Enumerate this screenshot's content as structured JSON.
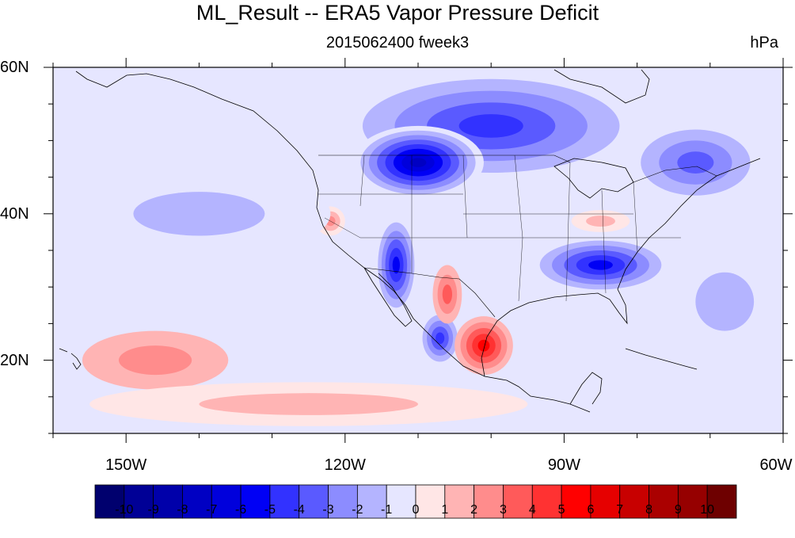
{
  "title": "ML_Result -- ERA5 Vapor Pressure Deficit",
  "subtitle": "2015062400 fweek3",
  "units": "hPa",
  "map": {
    "projection": "cylindrical-equidistant",
    "lon_range": [
      -160,
      -60
    ],
    "lat_range": [
      10,
      60
    ],
    "lon_ticks": [
      {
        "value": -150,
        "label": "150W"
      },
      {
        "value": -120,
        "label": "120W"
      },
      {
        "value": -90,
        "label": "90W"
      },
      {
        "value": -60,
        "label": "60W"
      }
    ],
    "lat_ticks": [
      {
        "value": 60,
        "label": "60N"
      },
      {
        "value": 40,
        "label": "40N"
      },
      {
        "value": 20,
        "label": "20N"
      }
    ]
  },
  "colorbar": {
    "labels": [
      "-10",
      "-9",
      "-8",
      "-7",
      "-6",
      "-5",
      "-4",
      "-3",
      "-2",
      "-1",
      "0",
      "1",
      "2",
      "3",
      "4",
      "5",
      "6",
      "7",
      "8",
      "9",
      "10"
    ],
    "colors": [
      "#00006e",
      "#000096",
      "#0000aa",
      "#0000c3",
      "#0000dc",
      "#0000f5",
      "#3232ff",
      "#5a5aff",
      "#8c8cff",
      "#b4b4ff",
      "#e6e6ff",
      "#ffe6e6",
      "#ffb4b4",
      "#ff8c8c",
      "#ff5a5a",
      "#ff3232",
      "#ff0000",
      "#e60000",
      "#c80000",
      "#aa0000",
      "#960000",
      "#6e0000"
    ]
  },
  "chart_data": {
    "type": "heatmap",
    "variable": "Vapor Pressure Deficit",
    "units": "hPa",
    "x": "longitude",
    "y": "latitude",
    "xlim": [
      -160,
      -60
    ],
    "ylim": [
      10,
      60
    ],
    "color_range": [
      -10,
      10
    ],
    "regions": [
      {
        "lon": -100,
        "lat": 52,
        "r_lon": 22,
        "r_lat": 8,
        "value": -5
      },
      {
        "lon": -110,
        "lat": 47,
        "r_lon": 9,
        "r_lat": 5,
        "value": -7.5
      },
      {
        "lon": -85,
        "lat": 33,
        "r_lon": 10,
        "r_lat": 4,
        "value": -6
      },
      {
        "lon": -113,
        "lat": 33,
        "r_lon": 3,
        "r_lat": 7,
        "value": -6
      },
      {
        "lon": -107,
        "lat": 23,
        "r_lon": 3,
        "r_lat": 4,
        "value": -5
      },
      {
        "lon": -101,
        "lat": 22,
        "r_lon": 4,
        "r_lat": 4,
        "value": 5
      },
      {
        "lon": -106,
        "lat": 29,
        "r_lon": 2,
        "r_lat": 4,
        "value": 3
      },
      {
        "lon": -122,
        "lat": 39,
        "r_lon": 2,
        "r_lat": 2,
        "value": 2.5
      },
      {
        "lon": -85,
        "lat": 39,
        "r_lon": 4,
        "r_lat": 1.5,
        "value": 1.5
      },
      {
        "lon": -146,
        "lat": 20,
        "r_lon": 10,
        "r_lat": 4,
        "value": 2
      },
      {
        "lon": -125,
        "lat": 14,
        "r_lon": 30,
        "r_lat": 3,
        "value": 1.2
      },
      {
        "lon": -140,
        "lat": 40,
        "r_lon": 18,
        "r_lat": 6,
        "value": -1.5
      },
      {
        "lon": -68,
        "lat": 28,
        "r_lon": 8,
        "r_lat": 8,
        "value": -1.5
      },
      {
        "lon": -72,
        "lat": 47,
        "r_lon": 10,
        "r_lat": 6,
        "value": -4
      }
    ]
  }
}
